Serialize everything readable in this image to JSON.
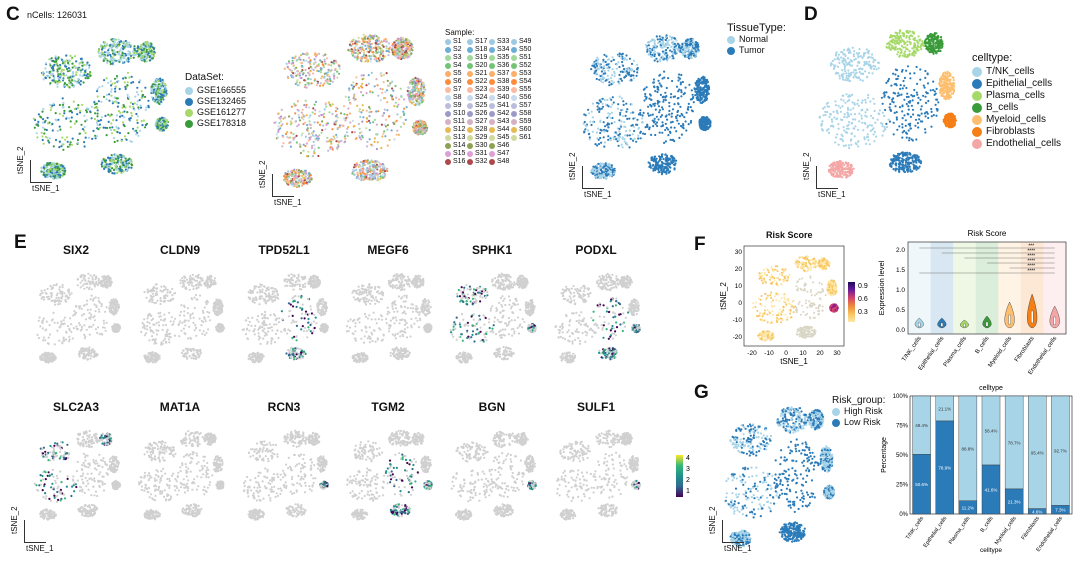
{
  "panels": {
    "C": {
      "label": "C",
      "ncells": "nCells: 126031",
      "dataset": {
        "title": "DataSet:",
        "items": [
          {
            "name": "GSE166555",
            "color": "#a8d4e8"
          },
          {
            "name": "GSE132465",
            "color": "#2b7bb9"
          },
          {
            "name": "GSE161277",
            "color": "#a6d96a"
          },
          {
            "name": "GSE178318",
            "color": "#3a9b3a"
          }
        ]
      },
      "sample": {
        "title": "Sample:",
        "items": [
          "S1",
          "S2",
          "S3",
          "S4",
          "S5",
          "S6",
          "S7",
          "S8",
          "S9",
          "S10",
          "S11",
          "S12",
          "S13",
          "S14",
          "S15",
          "S16",
          "S17",
          "S18",
          "S19",
          "S20",
          "S21",
          "S22",
          "S23",
          "S24",
          "S25",
          "S26",
          "S27",
          "S28",
          "S29",
          "S30",
          "S31",
          "S32",
          "S33",
          "S34",
          "S35",
          "S36",
          "S37",
          "S38",
          "S39",
          "S40",
          "S41",
          "S42",
          "S43",
          "S44",
          "S45",
          "S46",
          "S47",
          "S48",
          "S49",
          "S50",
          "S51",
          "S52",
          "S53",
          "S54",
          "S55",
          "S56",
          "S57",
          "S58",
          "S59",
          "S60",
          "S61"
        ]
      },
      "tissue": {
        "title": "TissueType:",
        "items": [
          {
            "name": "Normal",
            "color": "#a8d4e8"
          },
          {
            "name": "Tumor",
            "color": "#2b7bb9"
          }
        ]
      }
    },
    "D": {
      "label": "D",
      "title": "celltype:",
      "items": [
        {
          "name": "T/NK_cells",
          "color": "#a8d4e8"
        },
        {
          "name": "Epithelial_cells",
          "color": "#2b7bb9"
        },
        {
          "name": "Plasma_cells",
          "color": "#a6d96a"
        },
        {
          "name": "B_cells",
          "color": "#3a9b3a"
        },
        {
          "name": "Myeloid_cells",
          "color": "#fdbf6f"
        },
        {
          "name": "Fibroblasts",
          "color": "#f57f17"
        },
        {
          "name": "Endothelial_cells",
          "color": "#f4a6a6"
        }
      ]
    },
    "E": {
      "label": "E",
      "genes_row1": [
        "SIX2",
        "CLDN9",
        "TPD52L1",
        "MEGF6",
        "SPHK1",
        "PODXL"
      ],
      "genes_row2": [
        "SLC2A3",
        "MAT1A",
        "RCN3",
        "TGM2",
        "BGN",
        "SULF1"
      ],
      "scale_ticks": [
        "4",
        "3",
        "2",
        "1"
      ]
    },
    "F": {
      "label": "F",
      "umap_title": "Risk Score",
      "xlabel": "tSNE_1",
      "ylabel": "tSNE_2",
      "xticks": [
        "-20",
        "-10",
        "0",
        "10",
        "20",
        "30"
      ],
      "yticks": [
        "30",
        "20",
        "10",
        "0",
        "-10",
        "-20"
      ],
      "scale_ticks": [
        "0.9",
        "0.6",
        "0.3"
      ],
      "violin_title": "Risk Score",
      "violin_ylabel": "Expression level",
      "violin_yticks": [
        "2.0",
        "1.5",
        "1.0",
        "0.5",
        "0.0"
      ],
      "violin_cats": [
        "T/NK_cells",
        "Epithelial_cells",
        "Plasma_cells",
        "B_cells",
        "Myeloid_cells",
        "Fibroblasts",
        "Endothelial_cells"
      ],
      "sig": [
        "***",
        "****",
        "****",
        "****",
        "****",
        "****"
      ]
    },
    "G": {
      "label": "G",
      "legend_title": "Risk_group:",
      "legend_items": [
        {
          "name": "High Risk",
          "color": "#a8d4e8"
        },
        {
          "name": "Low Risk",
          "color": "#2b7bb9"
        }
      ],
      "bar_title": "celltype",
      "bar_ylabel": "Percentage",
      "bar_xlabel": "celltype",
      "bar_yticks": [
        "100%",
        "75%",
        "50%",
        "25%",
        "0%"
      ],
      "xlabel": "tSNE_1",
      "ylabel": "tSNE_2"
    },
    "axes": {
      "x": "tSNE_1",
      "y": "tSNE_2"
    }
  },
  "chart_data": [
    {
      "type": "bar",
      "title": "celltype",
      "xlabel": "celltype",
      "ylabel": "Percentage",
      "categories": [
        "T/NK_cells",
        "Epithelial_cells",
        "Plasma_cells",
        "B_cells",
        "Myeloid_cells",
        "Fibroblasts",
        "Endothelial_cells"
      ],
      "series": [
        {
          "name": "High Risk",
          "values": [
            49.4,
            21.1,
            88.8,
            58.4,
            78.7,
            95.4,
            92.7
          ],
          "labels": [
            "49.4%",
            "21.1%",
            "88.8%",
            "58.4%",
            "78.7%",
            "95.4%",
            "92.7%"
          ]
        },
        {
          "name": "Low Risk",
          "values": [
            50.6,
            78.9,
            11.2,
            41.6,
            21.3,
            4.6,
            7.3
          ],
          "labels": [
            "50.6%",
            "78.9%",
            "11.2%",
            "41.6%",
            "21.3%",
            "4.6%",
            "7.3%"
          ]
        }
      ],
      "ylim": [
        0,
        100
      ]
    }
  ]
}
